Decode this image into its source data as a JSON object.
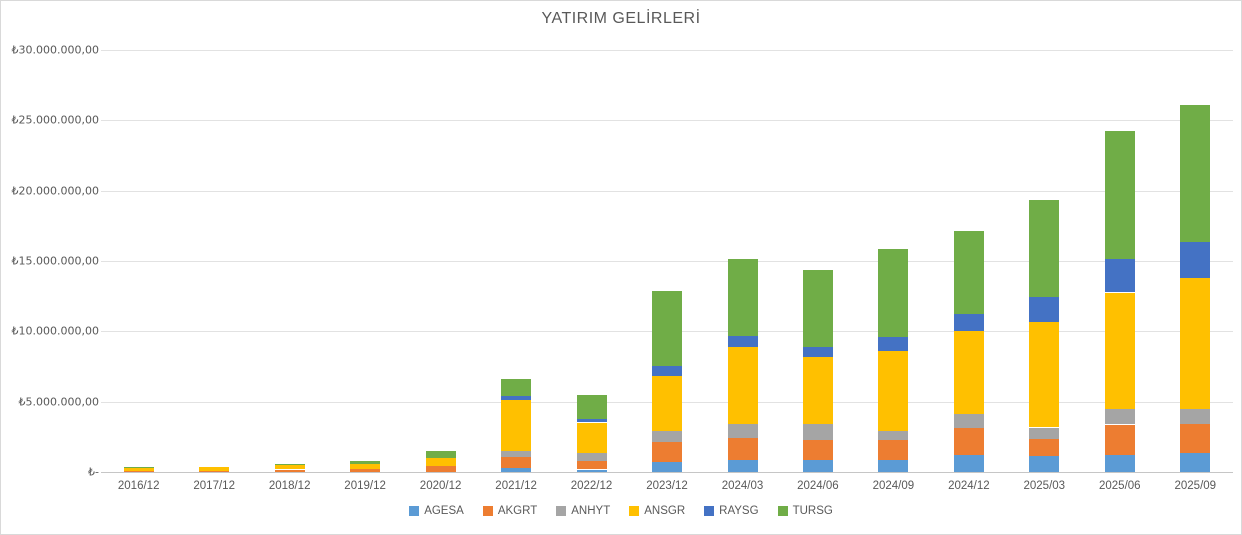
{
  "chart_data": {
    "type": "bar",
    "stacked": true,
    "title": "YATIRIM GELİRLERİ",
    "xlabel": "",
    "ylabel": "",
    "value_unit": "million TRY (values estimated from bar pixels)",
    "ylim": [
      0,
      30000000
    ],
    "grid": true,
    "legend_position": "bottom",
    "y_tick_labels": [
      "₺30.000.000,00",
      "₺25.000.000,00",
      "₺20.000.000,00",
      "₺15.000.000,00",
      "₺10.000.000,00",
      "₺5.000.000,00",
      "₺-"
    ],
    "y_tick_values_millions": [
      30,
      25,
      20,
      15,
      10,
      5,
      0
    ],
    "categories": [
      "2016/12",
      "2017/12",
      "2018/12",
      "2019/12",
      "2020/12",
      "2021/12",
      "2022/12",
      "2023/12",
      "2024/03",
      "2024/06",
      "2024/09",
      "2024/12",
      "2025/03",
      "2025/06",
      "2025/09"
    ],
    "series": [
      {
        "name": "AGESA",
        "color": "#5B9BD5",
        "values_millions": [
          0,
          0,
          0,
          0,
          0,
          0.28,
          0.18,
          0.71,
          0.87,
          0.85,
          0.88,
          1.18,
          1.13,
          1.25,
          1.35
        ]
      },
      {
        "name": "AKGRT",
        "color": "#ED7D31",
        "values_millions": [
          0.05,
          0.08,
          0.18,
          0.2,
          0.4,
          0.77,
          0.58,
          1.45,
          1.56,
          1.41,
          1.37,
          1.96,
          1.25,
          2.13,
          2.08
        ]
      },
      {
        "name": "ANHYT",
        "color": "#A5A5A5",
        "values_millions": [
          0,
          0,
          0,
          0,
          0,
          0.42,
          0.58,
          0.76,
          0.99,
          1.18,
          0.66,
          0.99,
          0.78,
          1.11,
          1.06
        ]
      },
      {
        "name": "ANSGR",
        "color": "#FFC000",
        "values_millions": [
          0.22,
          0.28,
          0.35,
          0.35,
          0.57,
          3.64,
          2.18,
          3.91,
          5.47,
          4.76,
          5.66,
          5.92,
          7.48,
          8.27,
          9.33
        ]
      },
      {
        "name": "RAYSG",
        "color": "#4472C4",
        "values_millions": [
          0,
          0,
          0,
          0,
          0,
          0.3,
          0.28,
          0.71,
          0.78,
          0.66,
          1.04,
          1.16,
          1.79,
          2.36,
          2.5
        ]
      },
      {
        "name": "TURSG",
        "color": "#70AD47",
        "values_millions": [
          0.06,
          0,
          0.05,
          0.27,
          0.52,
          1.22,
          1.69,
          5.33,
          5.49,
          5.52,
          6.27,
          5.92,
          6.89,
          9.1,
          9.8
        ]
      }
    ],
    "totals_millions": [
      0.33,
      0.36,
      0.58,
      0.82,
      1.49,
      6.63,
      5.49,
      12.87,
      15.16,
      14.38,
      15.88,
      17.13,
      19.32,
      24.22,
      26.12
    ]
  }
}
